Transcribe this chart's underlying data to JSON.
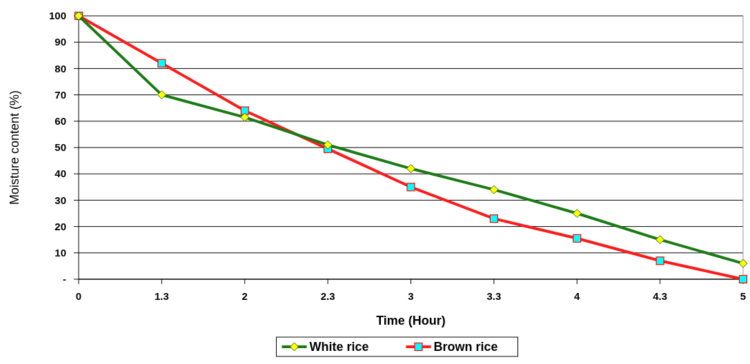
{
  "chart_data": {
    "type": "line",
    "xlabel": "Time (Hour)",
    "ylabel": "Moisture content (%)",
    "categories": [
      "0",
      "1.3",
      "2",
      "2.3",
      "3",
      "3.3",
      "4",
      "4.3",
      "5"
    ],
    "series": [
      {
        "name": "White rice",
        "color": "#1a7a14",
        "marker": "diamond",
        "values": [
          100,
          70,
          61.5,
          51,
          42,
          34,
          25,
          15,
          6
        ]
      },
      {
        "name": "Brown rice",
        "color": "#ff1a1a",
        "marker": "square",
        "values": [
          100,
          82,
          64,
          49.5,
          35,
          23,
          15.5,
          7,
          0
        ]
      }
    ],
    "ylim": [
      0,
      100
    ],
    "yticks": [
      {
        "value": 0,
        "label": "-"
      },
      10,
      20,
      30,
      40,
      50,
      60,
      70,
      80,
      90,
      100
    ],
    "grid": "y",
    "legend": "bottom",
    "line_style": "solid"
  }
}
